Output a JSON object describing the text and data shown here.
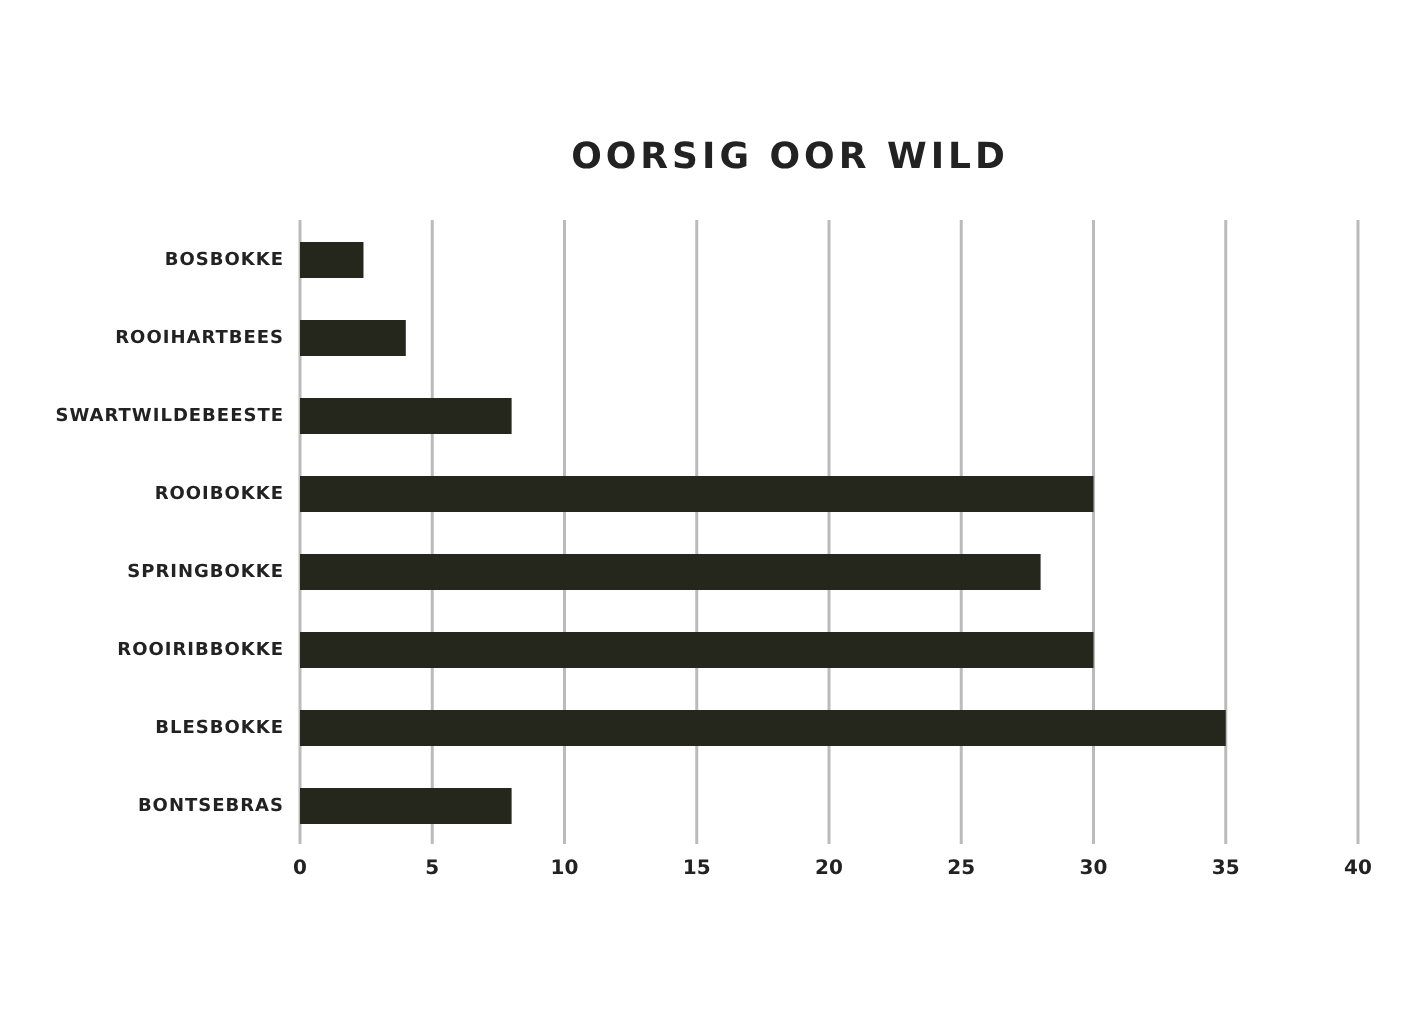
{
  "chart_data": {
    "type": "bar",
    "orientation": "horizontal",
    "title": "OORSIG OOR WILD",
    "categories": [
      "BOSBOKKE",
      "ROOIHARTBEES",
      "SWARTWILDEBEESTE",
      "ROOIBOKKE",
      "SPRINGBOKKE",
      "ROOIRIBBOKKE",
      "BLESBOKKE",
      "BONTSEBRAS"
    ],
    "values": [
      2.4,
      4,
      8,
      30,
      28,
      30,
      35,
      8
    ],
    "color": "#25261c",
    "xlim": [
      0,
      40
    ],
    "xticks": [
      0,
      5,
      10,
      15,
      20,
      25,
      30,
      35,
      40
    ],
    "grid": "x",
    "legend": false
  }
}
